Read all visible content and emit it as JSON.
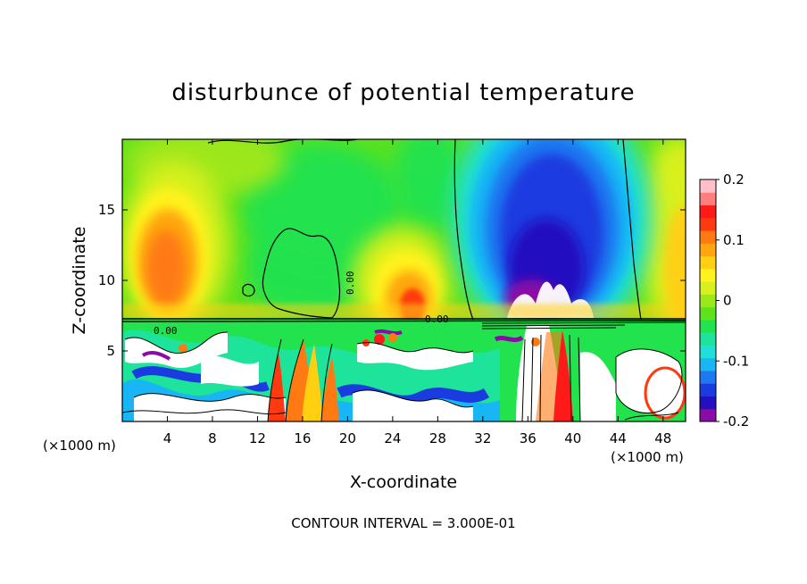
{
  "chart_data": {
    "type": "heatmap",
    "title": "disturbunce of potential temperature",
    "xlabel": "X-coordinate",
    "ylabel": "Z-coordinate",
    "x_unit_left": "(×1000 m)",
    "x_unit_right": "(×1000 m)",
    "x_ticks": [
      "4",
      "8",
      "12",
      "16",
      "20",
      "24",
      "28",
      "32",
      "36",
      "40",
      "44",
      "48"
    ],
    "y_ticks": [
      "5",
      "10",
      "15"
    ],
    "xlim": [
      0,
      50
    ],
    "ylim": [
      0,
      20
    ],
    "colorbar": {
      "ticks": [
        "0.2",
        "0.1",
        "0",
        "-0.1",
        "-0.2"
      ],
      "range": [
        -0.2,
        0.2
      ],
      "colors": [
        "#8a0ca6",
        "#2410c0",
        "#1a3be0",
        "#1e78f0",
        "#19b6f5",
        "#1fe0d8",
        "#1ee39a",
        "#22e24d",
        "#5fe11c",
        "#9ce71a",
        "#d8f01c",
        "#fff21e",
        "#ffd012",
        "#ffa60e",
        "#ff7a12",
        "#ff3a10",
        "#ff1a1a",
        "#ff7f7f",
        "#ffc0c8"
      ]
    },
    "contour_labels": [
      "0.00",
      "0.00",
      "0.00"
    ],
    "contour_interval_text": "CONTOUR INTERVAL = 3.000E-01",
    "features": {
      "warm_maxima_x": [
        4,
        24
      ],
      "cold_minimum_x": 38,
      "inversion_height": 7.3
    }
  }
}
